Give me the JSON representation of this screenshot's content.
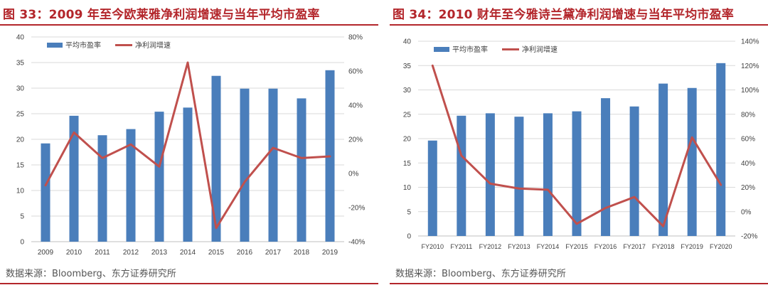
{
  "colors": {
    "bar": "#4a7ebb",
    "line": "#c0504d",
    "title": "#b3262b",
    "rule": "#b3262b",
    "grid": "#d9d9d9",
    "axis_text": "#404040"
  },
  "figures": [
    {
      "title": "图 33：2009 年至今欧莱雅净利润增速与当年平均市盈率",
      "source": "数据来源：Bloomberg、东方证券研究所",
      "chart_data": {
        "type": "bar+line",
        "categories": [
          "2009",
          "2010",
          "2011",
          "2012",
          "2013",
          "2014",
          "2015",
          "2016",
          "2017",
          "2018",
          "2019"
        ],
        "series": [
          {
            "name": "平均市盈率",
            "type": "bar",
            "axis": "left",
            "values": [
              19.2,
              24.6,
              20.8,
              22.0,
              25.4,
              26.2,
              32.4,
              29.9,
              29.9,
              28.0,
              33.5
            ]
          },
          {
            "name": "净利润增速",
            "type": "line",
            "axis": "right",
            "values": [
              -7,
              24,
              9,
              17,
              4,
              65,
              -32,
              -5,
              15,
              9,
              10
            ]
          }
        ],
        "y_left": {
          "min": 0,
          "max": 40,
          "ticks": [
            0,
            5,
            10,
            15,
            20,
            25,
            30,
            35,
            40
          ]
        },
        "y_right": {
          "min": -40,
          "max": 80,
          "ticks": [
            -40,
            -20,
            0,
            20,
            40,
            60,
            80
          ],
          "tick_labels": [
            "-40%",
            "-20%",
            "0%",
            "20%",
            "40%",
            "60%",
            "80%"
          ]
        },
        "legend_position": "top-left",
        "grid": true
      }
    },
    {
      "title": "图 34：2010 财年至今雅诗兰黛净利润增速与当年平均市盈率",
      "source": "数据来源：Bloomberg、东方证券研究所",
      "chart_data": {
        "type": "bar+line",
        "categories": [
          "FY2010",
          "FY2011",
          "FY2012",
          "FY2013",
          "FY2014",
          "FY2015",
          "FY2016",
          "FY2017",
          "FY2018",
          "FY2019",
          "FY2020"
        ],
        "series": [
          {
            "name": "平均市盈率",
            "type": "bar",
            "axis": "left",
            "values": [
              19.6,
              24.7,
              25.2,
              24.5,
              25.2,
              25.6,
              28.3,
              26.6,
              31.3,
              30.4,
              35.5
            ]
          },
          {
            "name": "净利润增速",
            "type": "line",
            "axis": "right",
            "values": [
              120,
              46,
              23,
              19,
              18,
              -10,
              3,
              12,
              -12,
              61,
              22
            ]
          }
        ],
        "y_left": {
          "min": 0,
          "max": 40,
          "ticks": [
            0,
            5,
            10,
            15,
            20,
            25,
            30,
            35,
            40
          ]
        },
        "y_right": {
          "min": -20,
          "max": 140,
          "ticks": [
            -20,
            0,
            20,
            40,
            60,
            80,
            100,
            120,
            140
          ],
          "tick_labels": [
            "-20%",
            "0%",
            "20%",
            "40%",
            "60%",
            "80%",
            "100%",
            "120%",
            "140%"
          ]
        },
        "legend_position": "top-left",
        "grid": true
      }
    }
  ]
}
